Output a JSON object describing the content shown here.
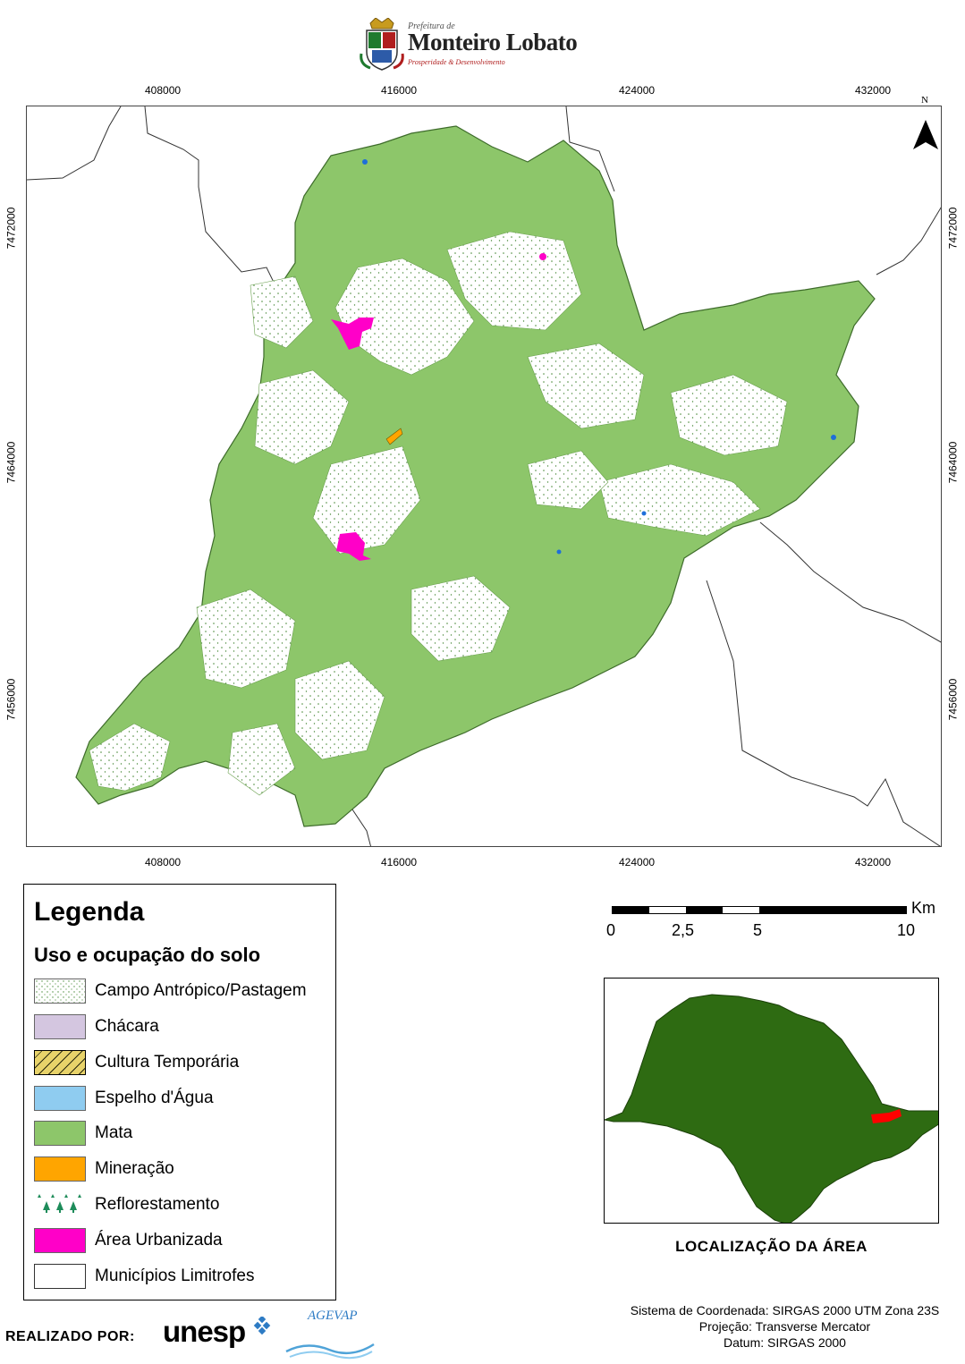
{
  "header": {
    "prefix": "Prefeitura de",
    "municipality": "Monteiro Lobato",
    "motto": "Prosperidade & Desenvolvimento"
  },
  "map": {
    "top_ticks": [
      "408000",
      "416000",
      "424000",
      "432000"
    ],
    "bottom_ticks": [
      "408000",
      "416000",
      "424000",
      "432000"
    ],
    "left_ticks": [
      "7472000",
      "7464000",
      "7456000"
    ],
    "right_ticks": [
      "7472000",
      "7464000",
      "7456000"
    ],
    "north_label": "N",
    "colors": {
      "mata": "#8DC66A",
      "border": "#333333",
      "urban": "#FF00C8",
      "water": "#1E6FD9"
    }
  },
  "legend": {
    "title": "Legenda",
    "subtitle": "Uso e ocupação do solo",
    "items": [
      {
        "label": "Campo Antrópico/Pastagem",
        "icon": "pasture-swatch",
        "color": "#FFFFFF"
      },
      {
        "label": "Chácara",
        "icon": "chacara-swatch",
        "color": "#D4C6E0"
      },
      {
        "label": "Cultura Temporária",
        "icon": "crop-swatch",
        "color": "#E8D36A"
      },
      {
        "label": "Espelho d'Água",
        "icon": "water-swatch",
        "color": "#8FCCF0"
      },
      {
        "label": "Mata",
        "icon": "forest-swatch",
        "color": "#8DC66A"
      },
      {
        "label": "Mineração",
        "icon": "mining-swatch",
        "color": "#FFA500"
      },
      {
        "label": "Reflorestamento",
        "icon": "reforestation-swatch",
        "color": "#1E8C5A"
      },
      {
        "label": "Área Urbanizada",
        "icon": "urban-swatch",
        "color": "#FF00C8"
      },
      {
        "label": "Municípios Limitrofes",
        "icon": "municipality-swatch",
        "color": "#FFFFFF"
      }
    ]
  },
  "scalebar": {
    "labels": [
      "0",
      "2,5",
      "5",
      "10"
    ],
    "unit": "Km"
  },
  "inset": {
    "title": "LOCALIZAÇÃO DA ÁREA",
    "state_color": "#2E6B12",
    "highlight_color": "#FF0000"
  },
  "crs": {
    "line1": "Sistema de Coordenada: SIRGAS 2000 UTM Zona 23S",
    "line2": "Projeção: Transverse Mercator",
    "line3": "Datum: SIRGAS 2000"
  },
  "footer": {
    "made_by": "REALIZADO POR:",
    "logo1": "unesp",
    "logo2": "AGEVAP"
  }
}
